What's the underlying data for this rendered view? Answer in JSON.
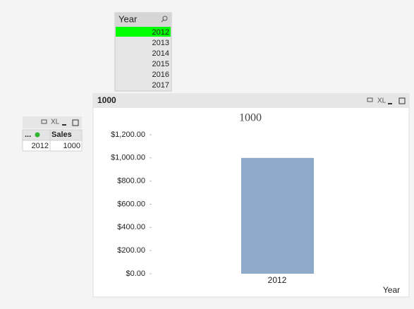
{
  "list_box": {
    "title": "Year",
    "items": [
      "2012",
      "2013",
      "2014",
      "2015",
      "2016",
      "2017"
    ],
    "selected_color": "#00ff00"
  },
  "table_box": {
    "xl_label": "XL",
    "headers": [
      "...",
      "Sales"
    ],
    "rows": [
      [
        "2012",
        "1000"
      ]
    ]
  },
  "chart_caption": {
    "title": "1000",
    "xl_label": "XL"
  },
  "chart_data": {
    "type": "bar",
    "title": "1000",
    "x_label": "Year",
    "categories": [
      "2012"
    ],
    "values": [
      1000
    ],
    "color": "#8eaacb",
    "ylim": [
      0,
      1200
    ],
    "yticks": [
      {
        "value": 0,
        "label": "$0.00"
      },
      {
        "value": 200,
        "label": "$200.00"
      },
      {
        "value": 400,
        "label": "$400.00"
      },
      {
        "value": 600,
        "label": "$600.00"
      },
      {
        "value": 800,
        "label": "$800.00"
      },
      {
        "value": 1000,
        "label": "$1,000.00"
      },
      {
        "value": 1200,
        "label": "$1,200.00"
      }
    ],
    "grid": false
  }
}
